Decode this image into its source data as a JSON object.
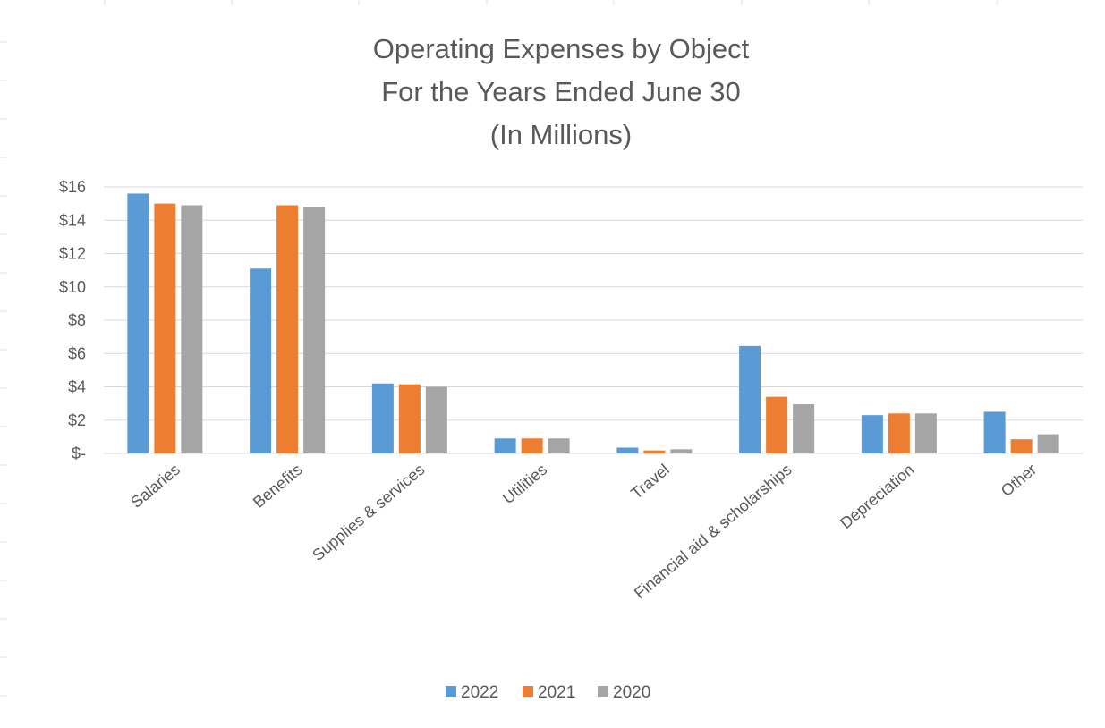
{
  "chart_data": {
    "type": "bar",
    "title_lines": [
      "Operating Expenses by Object",
      "For the Years Ended June 30",
      "(In Millions)"
    ],
    "categories": [
      "Salaries",
      "Benefits",
      "Supplies & services",
      "Utilities",
      "Travel",
      "Financial aid & scholarships",
      "Depreciation",
      "Other"
    ],
    "series": [
      {
        "name": "2022",
        "color": "#5b9bd5",
        "values": [
          15.6,
          11.1,
          4.2,
          0.9,
          0.35,
          6.45,
          2.3,
          2.5
        ]
      },
      {
        "name": "2021",
        "color": "#ed7d31",
        "values": [
          15.0,
          14.9,
          4.15,
          0.9,
          0.18,
          3.4,
          2.4,
          0.85
        ]
      },
      {
        "name": "2020",
        "color": "#a5a5a5",
        "values": [
          14.9,
          14.8,
          4.0,
          0.9,
          0.25,
          2.95,
          2.4,
          1.15
        ]
      }
    ],
    "y_ticks": [
      {
        "value": 0,
        "label": "$-"
      },
      {
        "value": 2,
        "label": "$2"
      },
      {
        "value": 4,
        "label": "$4"
      },
      {
        "value": 6,
        "label": "$6"
      },
      {
        "value": 8,
        "label": "$8"
      },
      {
        "value": 10,
        "label": "$10"
      },
      {
        "value": 12,
        "label": "$12"
      },
      {
        "value": 14,
        "label": "$14"
      },
      {
        "value": 16,
        "label": "$16"
      }
    ],
    "ylim": [
      0,
      16
    ],
    "grid": true,
    "legend_position": "bottom",
    "xlabel": "",
    "ylabel": ""
  }
}
